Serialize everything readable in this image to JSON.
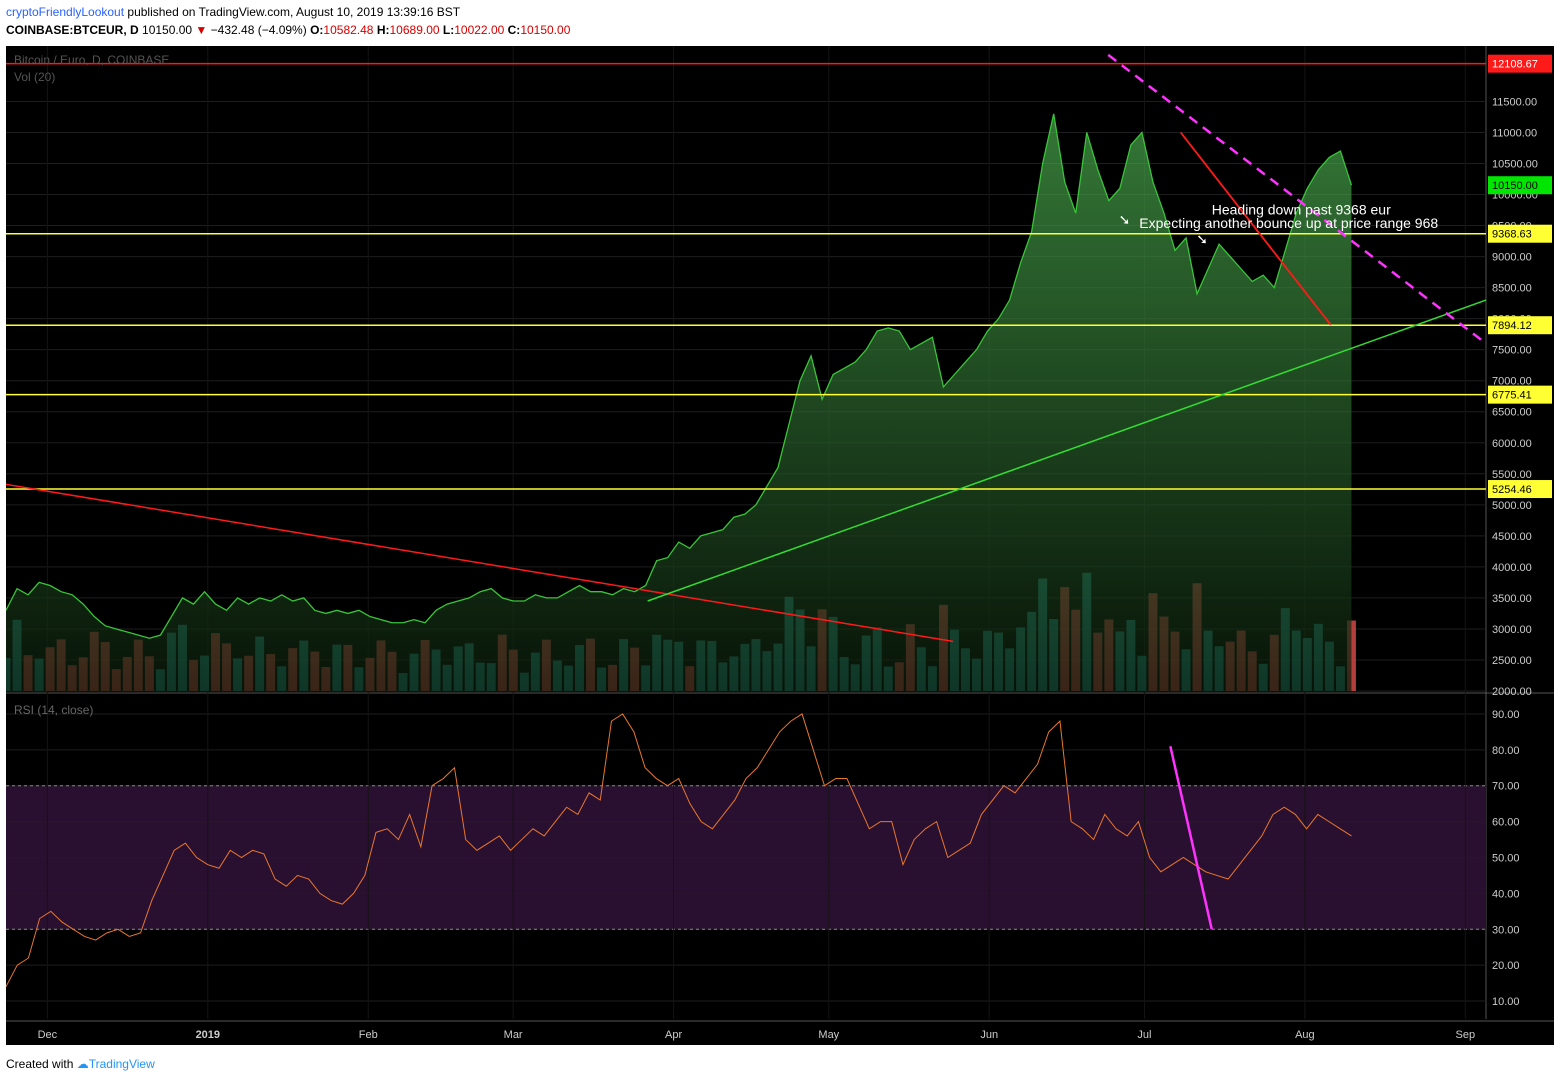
{
  "header": {
    "author": "cryptoFriendlyLookout",
    "published": "published on TradingView.com, August 10, 2019 13:39:16 BST",
    "symbol": "COINBASE:BTCEUR, D",
    "last": "10150.00",
    "change": "−432.48 (−4.09%)",
    "o_label": "O:",
    "o": "10582.48",
    "h_label": "H:",
    "h": "10689.00",
    "l_label": "L:",
    "l": "10022.00",
    "c_label": "C:",
    "c": "10150.00"
  },
  "footer": {
    "created": "Created with",
    "brand": "TradingView"
  },
  "colors": {
    "background": "#000000",
    "area_line": "#3ac43a",
    "volume_up": "#26a69a",
    "volume_down": "#ef5350",
    "rsi_line": "#e8772e",
    "rsi_band": "#2a1030",
    "level_line": "#ffff33",
    "resistance_line": "#ff1a1a",
    "trend_up": "#33dd33",
    "trend_pink": "#ff33ff"
  },
  "chart_data": [
    {
      "type": "area",
      "title": "Bitcoin / Euro, D, COINBASE",
      "indicator": "Vol (20)",
      "x_ticks": [
        "Dec",
        "2019",
        "Feb",
        "Mar",
        "Apr",
        "May",
        "Jun",
        "Jul",
        "Aug",
        "Sep"
      ],
      "y_ticks": [
        "11500.00",
        "11000.00",
        "10500.00",
        "10000.00",
        "9500.00",
        "9000.00",
        "8500.00",
        "8000.00",
        "7500.00",
        "7000.00",
        "6500.00",
        "6000.00",
        "5500.00",
        "5000.00",
        "4500.00",
        "4000.00",
        "3500.00",
        "3000.00",
        "2500.00",
        "2000.00"
      ],
      "ylim": [
        2000,
        12200
      ],
      "x_range": [
        "2018-11-23",
        "2019-09-05"
      ],
      "series": [
        {
          "values": [
            3300,
            3650,
            3550,
            3750,
            3700,
            3600,
            3550,
            3400,
            3200,
            3050,
            3000,
            2950,
            2900,
            2850,
            2900,
            3200,
            3500,
            3400,
            3600,
            3400,
            3300,
            3500,
            3400,
            3500,
            3450,
            3550,
            3450,
            3500,
            3300,
            3250,
            3300,
            3250,
            3300,
            3200,
            3150,
            3100,
            3100,
            3150,
            3100,
            3300,
            3400,
            3450,
            3500,
            3600,
            3650,
            3500,
            3450,
            3450,
            3550,
            3500,
            3500,
            3600,
            3700,
            3600,
            3600,
            3550,
            3650,
            3600,
            3700,
            4100,
            4150,
            4400,
            4300,
            4500,
            4550,
            4600,
            4800,
            4850,
            5000,
            5300,
            5600,
            6300,
            7000,
            7400,
            6700,
            7100,
            7200,
            7300,
            7500,
            7800,
            7850,
            7800,
            7500,
            7600,
            7700,
            6900,
            7100,
            7300,
            7500,
            7800,
            8000,
            8300,
            8900,
            9400,
            10500,
            11300,
            10200,
            9700,
            11000,
            10400,
            9900,
            10100,
            10800,
            11000,
            10200,
            9700,
            9100,
            9300,
            8400,
            8800,
            9200,
            9000,
            8800,
            8600,
            8700,
            8500,
            9100,
            9700,
            10100,
            10400,
            10600,
            10700,
            10150
          ],
          "x_end": "2019-08-10"
        }
      ],
      "levels": [
        12108.67,
        9368.63,
        7894.12,
        6775.41,
        5254.46
      ],
      "last_price": 10150.0,
      "annotations": [
        "Heading down past 9368 eur",
        "Expecting another bounce up at price range 968"
      ]
    },
    {
      "type": "line",
      "title": "RSI (14, close)",
      "y_ticks": [
        "90.00",
        "80.00",
        "70.00",
        "60.00",
        "50.00",
        "40.00",
        "30.00",
        "20.00",
        "10.00"
      ],
      "ylim": [
        5,
        95
      ],
      "band": [
        30,
        70
      ],
      "series": [
        {
          "values": [
            14,
            20,
            22,
            33,
            35,
            32,
            30,
            28,
            27,
            29,
            30,
            28,
            29,
            38,
            45,
            52,
            54,
            50,
            48,
            47,
            52,
            50,
            52,
            51,
            44,
            42,
            45,
            44,
            40,
            38,
            37,
            40,
            45,
            57,
            58,
            55,
            62,
            53,
            70,
            72,
            75,
            55,
            52,
            54,
            56,
            52,
            55,
            58,
            56,
            60,
            64,
            62,
            68,
            66,
            88,
            90,
            85,
            75,
            72,
            70,
            72,
            65,
            60,
            58,
            62,
            66,
            72,
            75,
            80,
            85,
            88,
            90,
            80,
            70,
            72,
            72,
            65,
            58,
            60,
            60,
            48,
            55,
            58,
            60,
            50,
            52,
            54,
            62,
            66,
            70,
            68,
            72,
            76,
            85,
            88,
            60,
            58,
            55,
            62,
            58,
            56,
            60,
            50,
            46,
            48,
            50,
            48,
            46,
            45,
            44,
            48,
            52,
            56,
            62,
            64,
            62,
            58,
            62,
            60,
            58,
            56
          ],
          "x_end": "2019-08-10"
        }
      ]
    }
  ]
}
